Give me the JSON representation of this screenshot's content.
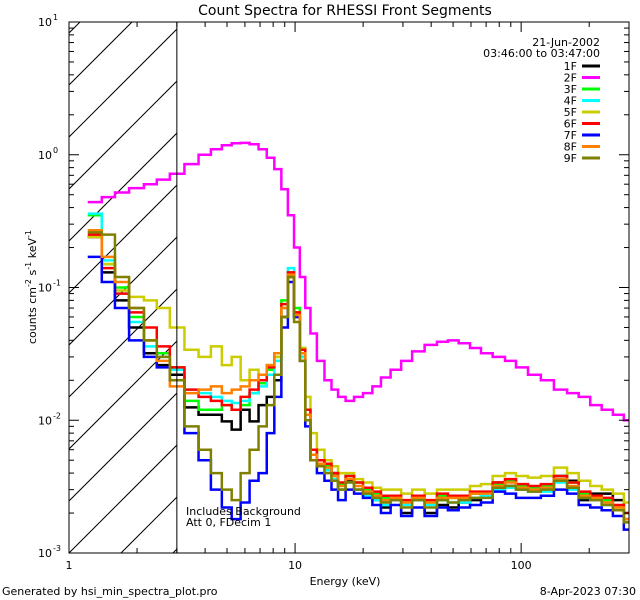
{
  "chart_data": {
    "type": "line",
    "title": "Count Spectra for RHESSI Front Segments",
    "xlabel": "Energy (keV)",
    "ylabel_parts": [
      "counts cm",
      "-2",
      " s",
      "-1",
      " keV",
      "-1"
    ],
    "xscale": "log",
    "yscale": "log",
    "xlim": [
      1,
      300
    ],
    "ylim": [
      0.001,
      10
    ],
    "x_ticks": [
      {
        "value": 1,
        "label": "1"
      },
      {
        "value": 10,
        "label": "10"
      },
      {
        "value": 100,
        "label": "100"
      }
    ],
    "y_ticks": [
      {
        "value": 0.001,
        "base": "10",
        "exp": "-3"
      },
      {
        "value": 0.01,
        "base": "10",
        "exp": "-2"
      },
      {
        "value": 0.1,
        "base": "10",
        "exp": "-1"
      },
      {
        "value": 1,
        "base": "10",
        "exp": "0"
      },
      {
        "value": 10,
        "base": "10",
        "exp": "1"
      }
    ],
    "date": "21-Jun-2002",
    "time_range": "03:46:00 to 03:47:00",
    "notes": [
      "Includes Background",
      "Att 0, FDecim 1"
    ],
    "shaded_energy_range": [
      1,
      3
    ],
    "series": [
      {
        "name": "1F",
        "color": "#000000",
        "x": [
          1.3,
          1.5,
          1.7,
          2.0,
          2.3,
          2.6,
          3.0,
          3.5,
          4.0,
          4.5,
          5.0,
          5.5,
          6.0,
          6.6,
          7.2,
          7.8,
          8.4,
          9.0,
          9.6,
          10.2,
          10.8,
          11.4,
          12.0,
          13.0,
          14.0,
          15.0,
          16.0,
          17.5,
          19.0,
          21.0,
          23.0,
          25.0,
          28.0,
          31.0,
          35.0,
          40.0,
          45.0,
          50.0,
          56.0,
          63.0,
          70.0,
          80.0,
          90.0,
          100.0,
          115.0,
          130.0,
          150.0,
          170.0,
          190.0,
          215.0,
          240.0,
          270.0,
          300.0
        ],
        "y": [
          0.24,
          0.13,
          0.08,
          0.05,
          0.032,
          0.026,
          0.022,
          0.0125,
          0.011,
          0.011,
          0.0098,
          0.0085,
          0.012,
          0.0098,
          0.013,
          0.015,
          0.02,
          0.06,
          0.12,
          0.06,
          0.03,
          0.01,
          0.006,
          0.005,
          0.0045,
          0.004,
          0.003,
          0.0035,
          0.003,
          0.0028,
          0.0025,
          0.0022,
          0.0025,
          0.002,
          0.0025,
          0.002,
          0.0023,
          0.0022,
          0.0024,
          0.0025,
          0.0028,
          0.0034,
          0.0032,
          0.003,
          0.003,
          0.003,
          0.0038,
          0.0035,
          0.0025,
          0.0028,
          0.0028,
          0.0025,
          0.0018
        ]
      },
      {
        "name": "2F",
        "color": "#ff00ff",
        "x": [
          1.3,
          1.5,
          1.7,
          2.0,
          2.3,
          2.6,
          3.0,
          3.5,
          4.0,
          4.5,
          5.0,
          5.5,
          6.0,
          6.6,
          7.2,
          7.8,
          8.4,
          9.0,
          9.6,
          10.2,
          10.8,
          11.4,
          12.0,
          13.0,
          14.0,
          15.0,
          16.0,
          17.5,
          19.0,
          21.0,
          23.0,
          25.0,
          28.0,
          31.0,
          35.0,
          40.0,
          45.0,
          50.0,
          56.0,
          63.0,
          70.0,
          80.0,
          90.0,
          100.0,
          115.0,
          130.0,
          150.0,
          170.0,
          190.0,
          215.0,
          240.0,
          270.0,
          300.0
        ],
        "y": [
          0.44,
          0.48,
          0.52,
          0.56,
          0.6,
          0.65,
          0.72,
          0.85,
          1.0,
          1.1,
          1.18,
          1.22,
          1.23,
          1.2,
          1.1,
          0.95,
          0.78,
          0.55,
          0.35,
          0.2,
          0.12,
          0.07,
          0.045,
          0.028,
          0.02,
          0.017,
          0.015,
          0.014,
          0.015,
          0.016,
          0.018,
          0.021,
          0.024,
          0.028,
          0.033,
          0.037,
          0.039,
          0.04,
          0.038,
          0.035,
          0.032,
          0.03,
          0.028,
          0.025,
          0.022,
          0.02,
          0.017,
          0.016,
          0.015,
          0.013,
          0.012,
          0.011,
          0.01
        ]
      },
      {
        "name": "3F",
        "color": "#00ff00",
        "x": [
          1.3,
          1.5,
          1.7,
          2.0,
          2.3,
          2.6,
          3.0,
          3.5,
          4.0,
          4.5,
          5.0,
          5.5,
          6.0,
          6.6,
          7.2,
          7.8,
          8.4,
          9.0,
          9.6,
          10.2,
          10.8,
          11.4,
          12.0,
          13.0,
          14.0,
          15.0,
          16.0,
          17.5,
          19.0,
          21.0,
          23.0,
          25.0,
          28.0,
          31.0,
          35.0,
          40.0,
          45.0,
          50.0,
          56.0,
          63.0,
          70.0,
          80.0,
          90.0,
          100.0,
          115.0,
          130.0,
          150.0,
          170.0,
          190.0,
          215.0,
          240.0,
          270.0,
          300.0
        ],
        "y": [
          0.35,
          0.15,
          0.1,
          0.06,
          0.04,
          0.032,
          0.025,
          0.014,
          0.012,
          0.012,
          0.013,
          0.012,
          0.013,
          0.016,
          0.019,
          0.024,
          0.03,
          0.08,
          0.13,
          0.07,
          0.035,
          0.012,
          0.006,
          0.005,
          0.0045,
          0.0038,
          0.0033,
          0.0038,
          0.0034,
          0.003,
          0.0028,
          0.0026,
          0.0026,
          0.0024,
          0.0026,
          0.0024,
          0.0027,
          0.0026,
          0.0026,
          0.0028,
          0.0027,
          0.0033,
          0.0035,
          0.0032,
          0.0031,
          0.0032,
          0.0038,
          0.0034,
          0.0028,
          0.0026,
          0.0025,
          0.0022,
          0.002
        ]
      },
      {
        "name": "4F",
        "color": "#00ffff",
        "x": [
          1.3,
          1.5,
          1.7,
          2.0,
          2.3,
          2.6,
          3.0,
          3.5,
          4.0,
          4.5,
          5.0,
          5.5,
          6.0,
          6.6,
          7.2,
          7.8,
          8.4,
          9.0,
          9.6,
          10.2,
          10.8,
          11.4,
          12.0,
          13.0,
          14.0,
          15.0,
          16.0,
          17.5,
          19.0,
          21.0,
          23.0,
          25.0,
          28.0,
          31.0,
          35.0,
          40.0,
          45.0,
          50.0,
          56.0,
          63.0,
          70.0,
          80.0,
          90.0,
          100.0,
          115.0,
          130.0,
          150.0,
          170.0,
          190.0,
          215.0,
          240.0,
          270.0,
          300.0
        ],
        "y": [
          0.36,
          0.16,
          0.09,
          0.055,
          0.036,
          0.03,
          0.024,
          0.017,
          0.016,
          0.015,
          0.014,
          0.0135,
          0.014,
          0.016,
          0.018,
          0.022,
          0.028,
          0.07,
          0.14,
          0.06,
          0.03,
          0.011,
          0.0055,
          0.0045,
          0.0042,
          0.0036,
          0.003,
          0.0034,
          0.003,
          0.0027,
          0.0025,
          0.0023,
          0.0025,
          0.0023,
          0.0025,
          0.0023,
          0.0025,
          0.0024,
          0.0024,
          0.0026,
          0.0027,
          0.003,
          0.0031,
          0.003,
          0.0029,
          0.0029,
          0.0034,
          0.003,
          0.0026,
          0.0025,
          0.0023,
          0.0021,
          0.0017
        ]
      },
      {
        "name": "5F",
        "color": "#cccc00",
        "x": [
          1.3,
          1.5,
          1.7,
          2.0,
          2.3,
          2.6,
          3.0,
          3.5,
          4.0,
          4.5,
          5.0,
          5.5,
          6.0,
          6.6,
          7.2,
          7.8,
          8.4,
          9.0,
          9.6,
          10.2,
          10.8,
          11.4,
          12.0,
          13.0,
          14.0,
          15.0,
          16.0,
          17.5,
          19.0,
          21.0,
          23.0,
          25.0,
          28.0,
          31.0,
          35.0,
          40.0,
          45.0,
          50.0,
          56.0,
          63.0,
          70.0,
          80.0,
          90.0,
          100.0,
          115.0,
          130.0,
          150.0,
          170.0,
          190.0,
          215.0,
          240.0,
          270.0,
          300.0
        ],
        "y": [
          0.24,
          0.15,
          0.095,
          0.085,
          0.08,
          0.07,
          0.05,
          0.034,
          0.03,
          0.036,
          0.026,
          0.03,
          0.02,
          0.024,
          0.022,
          0.026,
          0.03,
          0.07,
          0.12,
          0.065,
          0.035,
          0.015,
          0.008,
          0.006,
          0.005,
          0.0045,
          0.004,
          0.004,
          0.0036,
          0.0034,
          0.0031,
          0.003,
          0.003,
          0.0028,
          0.003,
          0.0028,
          0.003,
          0.003,
          0.003,
          0.0032,
          0.0033,
          0.0038,
          0.004,
          0.0038,
          0.0037,
          0.0038,
          0.0044,
          0.004,
          0.0035,
          0.0032,
          0.003,
          0.0028,
          0.0024
        ]
      },
      {
        "name": "6F",
        "color": "#ff0000",
        "x": [
          1.3,
          1.5,
          1.7,
          2.0,
          2.3,
          2.6,
          3.0,
          3.5,
          4.0,
          4.5,
          5.0,
          5.5,
          6.0,
          6.6,
          7.2,
          7.8,
          8.4,
          9.0,
          9.6,
          10.2,
          10.8,
          11.4,
          12.0,
          13.0,
          14.0,
          15.0,
          16.0,
          17.5,
          19.0,
          21.0,
          23.0,
          25.0,
          28.0,
          31.0,
          35.0,
          40.0,
          45.0,
          50.0,
          56.0,
          63.0,
          70.0,
          80.0,
          90.0,
          100.0,
          115.0,
          130.0,
          150.0,
          170.0,
          190.0,
          215.0,
          240.0,
          270.0,
          300.0
        ],
        "y": [
          0.25,
          0.14,
          0.09,
          0.065,
          0.05,
          0.036,
          0.025,
          0.017,
          0.015,
          0.014,
          0.013,
          0.012,
          0.015,
          0.017,
          0.02,
          0.025,
          0.032,
          0.075,
          0.13,
          0.065,
          0.034,
          0.012,
          0.006,
          0.005,
          0.0047,
          0.004,
          0.0034,
          0.0038,
          0.0034,
          0.0031,
          0.0029,
          0.0027,
          0.0027,
          0.0025,
          0.0027,
          0.0025,
          0.0028,
          0.0027,
          0.0027,
          0.0029,
          0.0029,
          0.0034,
          0.0036,
          0.0033,
          0.0032,
          0.0033,
          0.0038,
          0.0034,
          0.0029,
          0.0027,
          0.0026,
          0.0023,
          0.002
        ]
      },
      {
        "name": "7F",
        "color": "#0000ff",
        "x": [
          1.3,
          1.5,
          1.7,
          2.0,
          2.3,
          2.6,
          3.0,
          3.5,
          4.0,
          4.5,
          5.0,
          5.5,
          6.0,
          6.6,
          7.2,
          7.8,
          8.4,
          9.0,
          9.6,
          10.2,
          10.8,
          11.4,
          12.0,
          13.0,
          14.0,
          15.0,
          16.0,
          17.5,
          19.0,
          21.0,
          23.0,
          25.0,
          28.0,
          31.0,
          35.0,
          40.0,
          45.0,
          50.0,
          56.0,
          63.0,
          70.0,
          80.0,
          90.0,
          100.0,
          115.0,
          130.0,
          150.0,
          170.0,
          190.0,
          215.0,
          240.0,
          270.0,
          300.0
        ],
        "y": [
          0.17,
          0.11,
          0.07,
          0.04,
          0.03,
          0.025,
          0.02,
          0.008,
          0.005,
          0.003,
          0.0022,
          0.0018,
          0.0024,
          0.0035,
          0.004,
          0.008,
          0.015,
          0.05,
          0.11,
          0.06,
          0.028,
          0.009,
          0.005,
          0.004,
          0.0035,
          0.003,
          0.0025,
          0.003,
          0.0028,
          0.0026,
          0.0023,
          0.002,
          0.0023,
          0.0019,
          0.0022,
          0.0019,
          0.0022,
          0.0021,
          0.0022,
          0.0023,
          0.0024,
          0.0029,
          0.0028,
          0.0026,
          0.0026,
          0.0027,
          0.003,
          0.0028,
          0.0023,
          0.0022,
          0.0021,
          0.0019,
          0.0015
        ]
      },
      {
        "name": "8F",
        "color": "#ff8000",
        "x": [
          1.3,
          1.5,
          1.7,
          2.0,
          2.3,
          2.6,
          3.0,
          3.5,
          4.0,
          4.5,
          5.0,
          5.5,
          6.0,
          6.6,
          7.2,
          7.8,
          8.4,
          9.0,
          9.6,
          10.2,
          10.8,
          11.4,
          12.0,
          13.0,
          14.0,
          15.0,
          16.0,
          17.5,
          19.0,
          21.0,
          23.0,
          25.0,
          28.0,
          31.0,
          35.0,
          40.0,
          45.0,
          50.0,
          56.0,
          63.0,
          70.0,
          80.0,
          90.0,
          100.0,
          115.0,
          130.0,
          150.0,
          170.0,
          190.0,
          215.0,
          240.0,
          270.0,
          300.0
        ],
        "y": [
          0.27,
          0.17,
          0.11,
          0.07,
          0.04,
          0.028,
          0.018,
          0.016,
          0.017,
          0.018,
          0.016,
          0.017,
          0.018,
          0.02,
          0.022,
          0.026,
          0.032,
          0.07,
          0.125,
          0.062,
          0.032,
          0.011,
          0.0055,
          0.0047,
          0.0044,
          0.0038,
          0.0032,
          0.0036,
          0.0032,
          0.0029,
          0.0027,
          0.0025,
          0.0026,
          0.0024,
          0.0026,
          0.0024,
          0.0026,
          0.0026,
          0.0026,
          0.0028,
          0.0028,
          0.0032,
          0.0034,
          0.0031,
          0.003,
          0.0031,
          0.0036,
          0.0032,
          0.0027,
          0.0026,
          0.0024,
          0.0022,
          0.0018
        ]
      },
      {
        "name": "9F",
        "color": "#808000",
        "x": [
          1.3,
          1.5,
          1.7,
          2.0,
          2.3,
          2.6,
          3.0,
          3.5,
          4.0,
          4.5,
          5.0,
          5.5,
          6.0,
          6.6,
          7.2,
          7.8,
          8.4,
          9.0,
          9.6,
          10.2,
          10.8,
          11.4,
          12.0,
          13.0,
          14.0,
          15.0,
          16.0,
          17.5,
          19.0,
          21.0,
          23.0,
          25.0,
          28.0,
          31.0,
          35.0,
          40.0,
          45.0,
          50.0,
          56.0,
          63.0,
          70.0,
          80.0,
          90.0,
          100.0,
          115.0,
          130.0,
          150.0,
          170.0,
          190.0,
          215.0,
          240.0,
          270.0,
          300.0
        ],
        "y": [
          0.26,
          0.25,
          0.12,
          0.07,
          0.04,
          0.03,
          0.02,
          0.009,
          0.006,
          0.004,
          0.003,
          0.0025,
          0.004,
          0.006,
          0.009,
          0.013,
          0.022,
          0.06,
          0.12,
          0.055,
          0.028,
          0.01,
          0.005,
          0.0045,
          0.004,
          0.0035,
          0.003,
          0.0034,
          0.003,
          0.0028,
          0.0026,
          0.0024,
          0.0025,
          0.0022,
          0.0025,
          0.0022,
          0.0025,
          0.0024,
          0.0025,
          0.0026,
          0.0026,
          0.0031,
          0.0032,
          0.003,
          0.0029,
          0.003,
          0.0035,
          0.0031,
          0.0026,
          0.0025,
          0.0023,
          0.0021,
          0.0017
        ]
      }
    ]
  },
  "footer": {
    "left": "Generated by hsi_min_spectra_plot.pro",
    "right": "8-Apr-2023 07:30"
  }
}
